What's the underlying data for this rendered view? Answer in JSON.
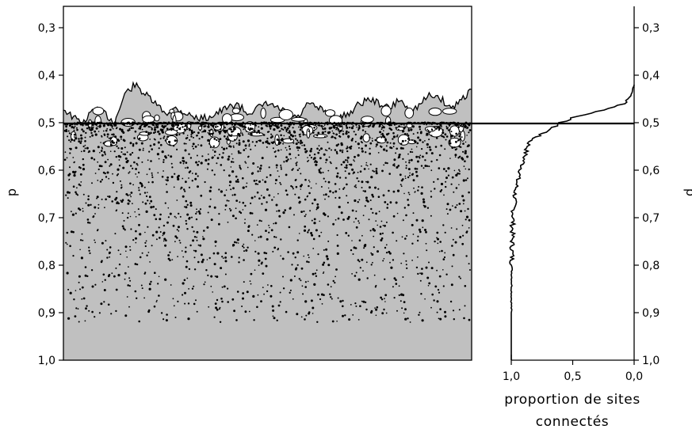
{
  "chart_data": [
    {
      "type": "area",
      "description_panel": "percolation-cluster",
      "ylabel": "p",
      "ylim": [
        0.25,
        1.0
      ],
      "y_inverted": true,
      "yticks": [
        {
          "value": 0.3,
          "label": "0,3"
        },
        {
          "value": 0.4,
          "label": "0,4"
        },
        {
          "value": 0.5,
          "label": "0,5"
        },
        {
          "value": 0.6,
          "label": "0,6"
        },
        {
          "value": 0.7,
          "label": "0,7"
        },
        {
          "value": 0.8,
          "label": "0,8"
        },
        {
          "value": 0.9,
          "label": "0,9"
        },
        {
          "value": 1.0,
          "label": "1,0"
        }
      ],
      "threshold_line": 0.5,
      "fill_color": "#c0c0c0",
      "front_p": [
        0.47,
        0.49,
        0.5,
        0.47,
        0.48,
        0.5,
        0.44,
        0.42,
        0.44,
        0.46,
        0.48,
        0.47,
        0.48,
        0.49,
        0.49,
        0.48,
        0.47,
        0.46,
        0.48,
        0.47,
        0.46,
        0.47,
        0.48,
        0.49,
        0.46,
        0.47,
        0.48,
        0.49,
        0.48,
        0.46,
        0.45,
        0.46,
        0.47,
        0.45,
        0.48,
        0.46,
        0.44,
        0.45,
        0.47,
        0.45,
        0.43
      ]
    },
    {
      "type": "line",
      "xlabel": "proportion de sites connectés",
      "xlim": [
        1.0,
        0.0
      ],
      "xticks": [
        {
          "value": 1.0,
          "label": "1,0"
        },
        {
          "value": 0.5,
          "label": "0,5"
        },
        {
          "value": 0.0,
          "label": "0,0"
        }
      ],
      "ylabel": "p",
      "ylim": [
        0.25,
        1.0
      ],
      "y_inverted": true,
      "yticks": [
        {
          "value": 0.3,
          "label": "0,3"
        },
        {
          "value": 0.4,
          "label": "0,4"
        },
        {
          "value": 0.5,
          "label": "0,5"
        },
        {
          "value": 0.6,
          "label": "0,6"
        },
        {
          "value": 0.7,
          "label": "0,7"
        },
        {
          "value": 0.8,
          "label": "0,8"
        },
        {
          "value": 0.9,
          "label": "0,9"
        },
        {
          "value": 1.0,
          "label": "1,0"
        }
      ],
      "threshold_line": 0.5,
      "series": [
        {
          "points": [
            [
              0.0,
              0.42
            ],
            [
              0.02,
              0.44
            ],
            [
              0.08,
              0.46
            ],
            [
              0.2,
              0.47
            ],
            [
              0.35,
              0.48
            ],
            [
              0.5,
              0.49
            ],
            [
              0.6,
              0.5
            ],
            [
              0.66,
              0.51
            ],
            [
              0.72,
              0.52
            ],
            [
              0.76,
              0.525
            ],
            [
              0.8,
              0.53
            ],
            [
              0.85,
              0.54
            ],
            [
              0.88,
              0.56
            ],
            [
              0.9,
              0.58
            ],
            [
              0.92,
              0.6
            ],
            [
              0.95,
              0.62
            ],
            [
              0.97,
              0.65
            ],
            [
              0.98,
              0.68
            ],
            [
              0.99,
              0.72
            ],
            [
              0.995,
              0.8
            ],
            [
              1.0,
              0.9
            ]
          ]
        }
      ]
    }
  ],
  "texts": {
    "left_ylabel": "p",
    "right_ylabel": "p",
    "xlabel_line1": "proportion de sites",
    "xlabel_line2": "connectés"
  }
}
